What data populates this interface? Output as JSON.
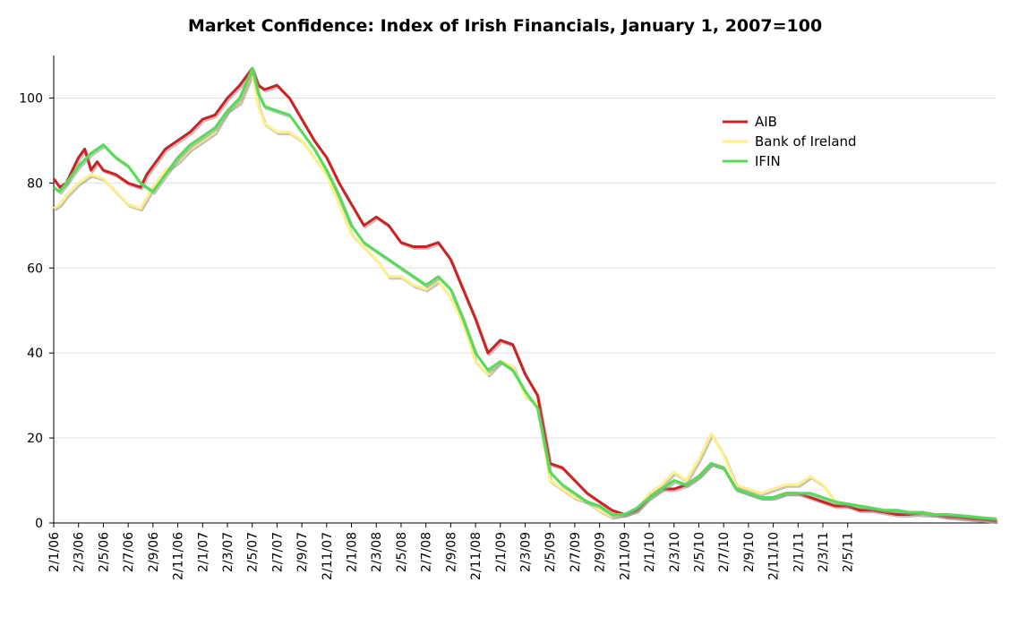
{
  "chart_data": {
    "type": "line",
    "title": "Market Confidence: Index of Irish Financials, January 1, 2007=100",
    "xlabel": "",
    "ylabel": "",
    "ylim": [
      0,
      110
    ],
    "y_ticks": [
      0,
      20,
      40,
      60,
      80,
      100
    ],
    "x_tick_labels": [
      "2/1/06",
      "2/3/06",
      "2/5/06",
      "2/7/06",
      "2/9/06",
      "2/11/06",
      "2/1/07",
      "2/3/07",
      "2/5/07",
      "2/7/07",
      "2/9/07",
      "2/11/07",
      "2/1/08",
      "2/3/08",
      "2/5/08",
      "2/7/08",
      "2/9/08",
      "2/11/08",
      "2/1/09",
      "2/3/09",
      "2/5/09",
      "2/7/09",
      "2/9/09",
      "2/11/09",
      "2/1/10",
      "2/3/10",
      "2/5/10",
      "2/7/10",
      "2/9/10",
      "2/11/10",
      "2/1/11",
      "2/3/11",
      "2/5/11"
    ],
    "x_range_months": [
      0,
      65
    ],
    "grid": true,
    "legend_position": "top-right",
    "series": [
      {
        "name": "AIB",
        "color": "#cc2222",
        "points": [
          [
            0,
            81
          ],
          [
            0.5,
            79
          ],
          [
            1,
            80
          ],
          [
            2,
            86
          ],
          [
            2.5,
            88
          ],
          [
            3,
            83
          ],
          [
            3.5,
            85
          ],
          [
            4,
            83
          ],
          [
            5,
            82
          ],
          [
            6,
            80
          ],
          [
            7,
            79
          ],
          [
            7.5,
            82
          ],
          [
            8,
            84
          ],
          [
            9,
            88
          ],
          [
            10,
            90
          ],
          [
            11,
            92
          ],
          [
            12,
            95
          ],
          [
            13,
            96
          ],
          [
            14,
            100
          ],
          [
            15,
            103
          ],
          [
            16,
            107
          ],
          [
            16.5,
            103
          ],
          [
            17,
            102
          ],
          [
            18,
            103
          ],
          [
            19,
            100
          ],
          [
            20,
            95
          ],
          [
            21,
            90
          ],
          [
            22,
            86
          ],
          [
            23,
            80
          ],
          [
            24,
            75
          ],
          [
            25,
            70
          ],
          [
            26,
            72
          ],
          [
            27,
            70
          ],
          [
            28,
            66
          ],
          [
            29,
            65
          ],
          [
            30,
            65
          ],
          [
            31,
            66
          ],
          [
            32,
            62
          ],
          [
            33,
            55
          ],
          [
            34,
            48
          ],
          [
            35,
            40
          ],
          [
            36,
            43
          ],
          [
            37,
            42
          ],
          [
            38,
            35
          ],
          [
            39,
            30
          ],
          [
            40,
            14
          ],
          [
            41,
            13
          ],
          [
            42,
            10
          ],
          [
            43,
            7
          ],
          [
            44,
            5
          ],
          [
            45,
            3
          ],
          [
            46,
            2
          ],
          [
            47,
            3
          ],
          [
            48,
            6
          ],
          [
            49,
            8
          ],
          [
            50,
            8
          ],
          [
            51,
            9
          ],
          [
            52,
            11
          ],
          [
            53,
            14
          ],
          [
            54,
            13
          ],
          [
            55,
            8
          ],
          [
            56,
            7
          ],
          [
            57,
            6
          ],
          [
            58,
            6
          ],
          [
            59,
            7
          ],
          [
            60,
            7
          ],
          [
            61,
            6
          ],
          [
            62,
            5
          ],
          [
            63,
            4
          ],
          [
            64,
            4
          ],
          [
            65,
            3
          ],
          [
            66,
            3
          ],
          [
            67,
            2.5
          ],
          [
            68,
            2
          ],
          [
            69,
            2
          ],
          [
            70,
            2.5
          ],
          [
            71,
            2
          ],
          [
            72,
            1.5
          ],
          [
            73,
            1.3
          ],
          [
            74,
            1
          ],
          [
            75,
            0.8
          ],
          [
            76,
            0.5
          ]
        ]
      },
      {
        "name": "Bank of Ireland",
        "color": "#fff08a",
        "points": [
          [
            0,
            74
          ],
          [
            0.5,
            75
          ],
          [
            1,
            77
          ],
          [
            2,
            80
          ],
          [
            3,
            82
          ],
          [
            4,
            81
          ],
          [
            5,
            78
          ],
          [
            6,
            75
          ],
          [
            7,
            74
          ],
          [
            8,
            79
          ],
          [
            9,
            83
          ],
          [
            10,
            85
          ],
          [
            11,
            88
          ],
          [
            12,
            90
          ],
          [
            13,
            92
          ],
          [
            14,
            97
          ],
          [
            15,
            99
          ],
          [
            16,
            106
          ],
          [
            16.5,
            98
          ],
          [
            17,
            94
          ],
          [
            18,
            92
          ],
          [
            19,
            92
          ],
          [
            20,
            90
          ],
          [
            21,
            86
          ],
          [
            22,
            82
          ],
          [
            23,
            75
          ],
          [
            24,
            68
          ],
          [
            25,
            65
          ],
          [
            26,
            62
          ],
          [
            27,
            58
          ],
          [
            28,
            58
          ],
          [
            29,
            56
          ],
          [
            30,
            55
          ],
          [
            31,
            57
          ],
          [
            32,
            53
          ],
          [
            33,
            47
          ],
          [
            34,
            38
          ],
          [
            35,
            35
          ],
          [
            36,
            38
          ],
          [
            37,
            37
          ],
          [
            38,
            30
          ],
          [
            39,
            28
          ],
          [
            40,
            10
          ],
          [
            41,
            8
          ],
          [
            42,
            6
          ],
          [
            43,
            5
          ],
          [
            44,
            3
          ],
          [
            45,
            1.5
          ],
          [
            46,
            2
          ],
          [
            47,
            3
          ],
          [
            48,
            7
          ],
          [
            49,
            9
          ],
          [
            50,
            12
          ],
          [
            51,
            10
          ],
          [
            52,
            15
          ],
          [
            53,
            21
          ],
          [
            54,
            16
          ],
          [
            55,
            9
          ],
          [
            56,
            8
          ],
          [
            57,
            7
          ],
          [
            58,
            8
          ],
          [
            59,
            9
          ],
          [
            60,
            9
          ],
          [
            61,
            11
          ],
          [
            62,
            9
          ],
          [
            63,
            5
          ],
          [
            64,
            4
          ],
          [
            65,
            4
          ],
          [
            66,
            3.5
          ],
          [
            67,
            3
          ],
          [
            68,
            3
          ],
          [
            69,
            2.5
          ],
          [
            70,
            2
          ],
          [
            71,
            2
          ],
          [
            72,
            1.5
          ],
          [
            73,
            1.2
          ],
          [
            74,
            1
          ],
          [
            75,
            0.8
          ],
          [
            76,
            0.5
          ]
        ]
      },
      {
        "name": "IFIN",
        "color": "#55dd55",
        "points": [
          [
            0,
            79
          ],
          [
            0.5,
            78
          ],
          [
            1,
            80
          ],
          [
            2,
            84
          ],
          [
            3,
            87
          ],
          [
            4,
            89
          ],
          [
            5,
            86
          ],
          [
            6,
            84
          ],
          [
            7,
            80
          ],
          [
            8,
            78
          ],
          [
            9,
            82
          ],
          [
            10,
            86
          ],
          [
            11,
            89
          ],
          [
            12,
            91
          ],
          [
            13,
            93
          ],
          [
            14,
            97
          ],
          [
            15,
            100
          ],
          [
            16,
            107
          ],
          [
            16.5,
            101
          ],
          [
            17,
            98
          ],
          [
            18,
            97
          ],
          [
            19,
            96
          ],
          [
            20,
            92
          ],
          [
            21,
            88
          ],
          [
            22,
            83
          ],
          [
            23,
            77
          ],
          [
            24,
            70
          ],
          [
            25,
            66
          ],
          [
            26,
            64
          ],
          [
            27,
            62
          ],
          [
            28,
            60
          ],
          [
            29,
            58
          ],
          [
            30,
            56
          ],
          [
            31,
            58
          ],
          [
            32,
            55
          ],
          [
            33,
            48
          ],
          [
            34,
            40
          ],
          [
            35,
            36
          ],
          [
            36,
            38
          ],
          [
            37,
            36
          ],
          [
            38,
            31
          ],
          [
            39,
            27
          ],
          [
            40,
            12
          ],
          [
            41,
            9
          ],
          [
            42,
            7
          ],
          [
            43,
            5
          ],
          [
            44,
            4
          ],
          [
            45,
            2
          ],
          [
            46,
            2
          ],
          [
            47,
            3.5
          ],
          [
            48,
            6
          ],
          [
            49,
            8
          ],
          [
            50,
            10
          ],
          [
            51,
            9
          ],
          [
            52,
            11
          ],
          [
            53,
            14
          ],
          [
            54,
            13
          ],
          [
            55,
            8
          ],
          [
            56,
            7
          ],
          [
            57,
            6
          ],
          [
            58,
            6
          ],
          [
            59,
            7
          ],
          [
            60,
            7
          ],
          [
            61,
            7
          ],
          [
            62,
            6
          ],
          [
            63,
            5
          ],
          [
            64,
            4.5
          ],
          [
            65,
            4
          ],
          [
            66,
            3.5
          ],
          [
            67,
            3
          ],
          [
            68,
            3
          ],
          [
            69,
            2.5
          ],
          [
            70,
            2.5
          ],
          [
            71,
            2
          ],
          [
            72,
            2
          ],
          [
            73,
            1.8
          ],
          [
            74,
            1.5
          ],
          [
            75,
            1.2
          ],
          [
            76,
            1
          ]
        ]
      }
    ]
  }
}
